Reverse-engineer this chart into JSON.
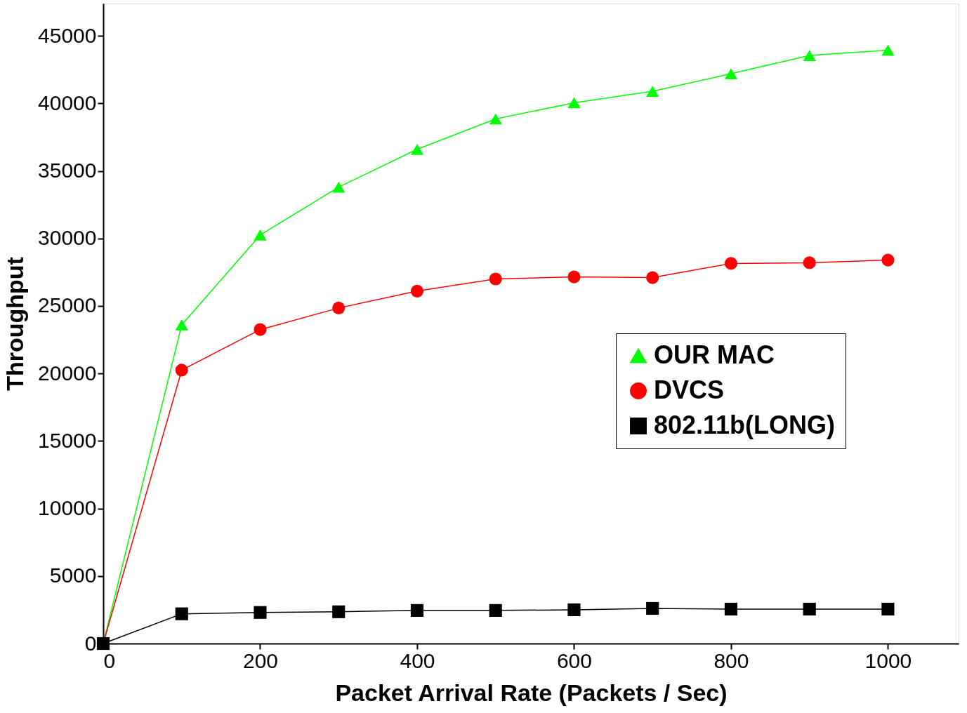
{
  "chart_data": {
    "type": "line",
    "xlabel": "Packet Arrival Rate (Packets / Sec)",
    "ylabel": "Throughput",
    "x": [
      0,
      100,
      200,
      300,
      400,
      500,
      600,
      700,
      800,
      900,
      1000
    ],
    "series": [
      {
        "name": "OUR MAC",
        "color": "#00ff00",
        "marker": "triangle",
        "values": [
          0,
          23600,
          30250,
          33800,
          36600,
          38850,
          40050,
          40900,
          42200,
          43550,
          43950
        ]
      },
      {
        "name": "DVCS",
        "color": "#ff0000",
        "marker": "circle",
        "values": [
          0,
          20250,
          23250,
          24850,
          26100,
          27000,
          27150,
          27100,
          28150,
          28200,
          28400
        ]
      },
      {
        "name": "802.11b(LONG)",
        "color": "#000000",
        "marker": "square",
        "values": [
          0,
          2200,
          2300,
          2350,
          2450,
          2450,
          2500,
          2600,
          2550,
          2550,
          2550
        ]
      }
    ],
    "xlim": [
      0,
      1090
    ],
    "ylim": [
      0,
      47400
    ],
    "xticks": [
      0,
      200,
      400,
      600,
      800,
      1000
    ],
    "yticks": [
      0,
      5000,
      10000,
      15000,
      20000,
      25000,
      30000,
      35000,
      40000,
      45000
    ],
    "grid": false,
    "legend": "right",
    "line_style": "solid"
  }
}
